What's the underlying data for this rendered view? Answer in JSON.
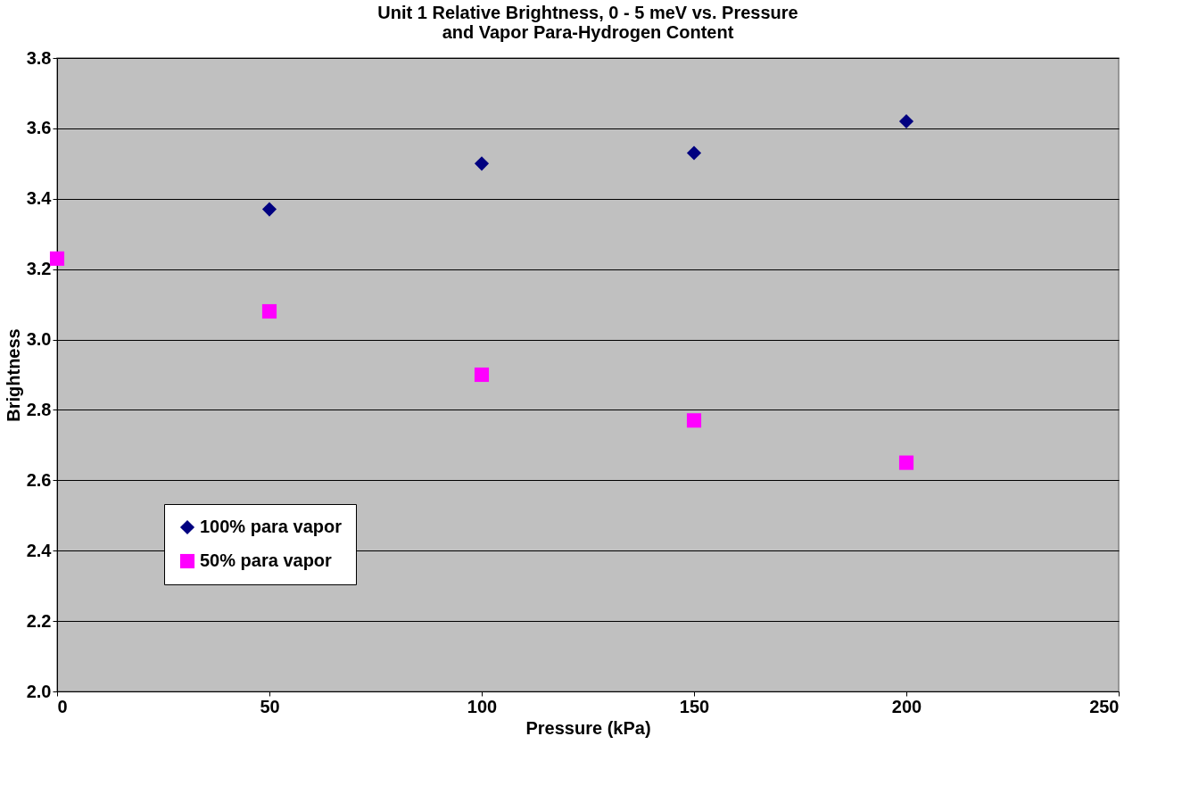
{
  "chart_data": {
    "type": "scatter",
    "title": "Unit 1 Relative Brightness, 0 - 5 meV vs. Pressure\nand Vapor Para-Hydrogen Content",
    "xlabel": "Pressure (kPa)",
    "ylabel": "Brightness",
    "series": [
      {
        "name": "100% para vapor",
        "color": "#000080",
        "marker": "diamond",
        "x": [
          50,
          100,
          150,
          200
        ],
        "values": [
          3.37,
          3.5,
          3.53,
          3.62
        ]
      },
      {
        "name": "50% para vapor",
        "color": "#ff00ff",
        "marker": "square",
        "x": [
          0,
          50,
          100,
          150,
          200
        ],
        "values": [
          3.23,
          3.08,
          2.9,
          2.77,
          2.65
        ]
      }
    ],
    "xlim": [
      0,
      250
    ],
    "xticks": [
      0,
      50,
      100,
      150,
      200,
      250
    ],
    "ylim": [
      2.0,
      3.8
    ],
    "yticks": [
      {
        "value": 2,
        "label": "2.0"
      },
      2.2,
      2.4,
      2.6,
      2.8,
      {
        "value": 3,
        "label": "3.0"
      },
      3.2,
      3.4,
      3.6,
      3.8
    ],
    "grid": "y",
    "legend": "bottom left"
  }
}
